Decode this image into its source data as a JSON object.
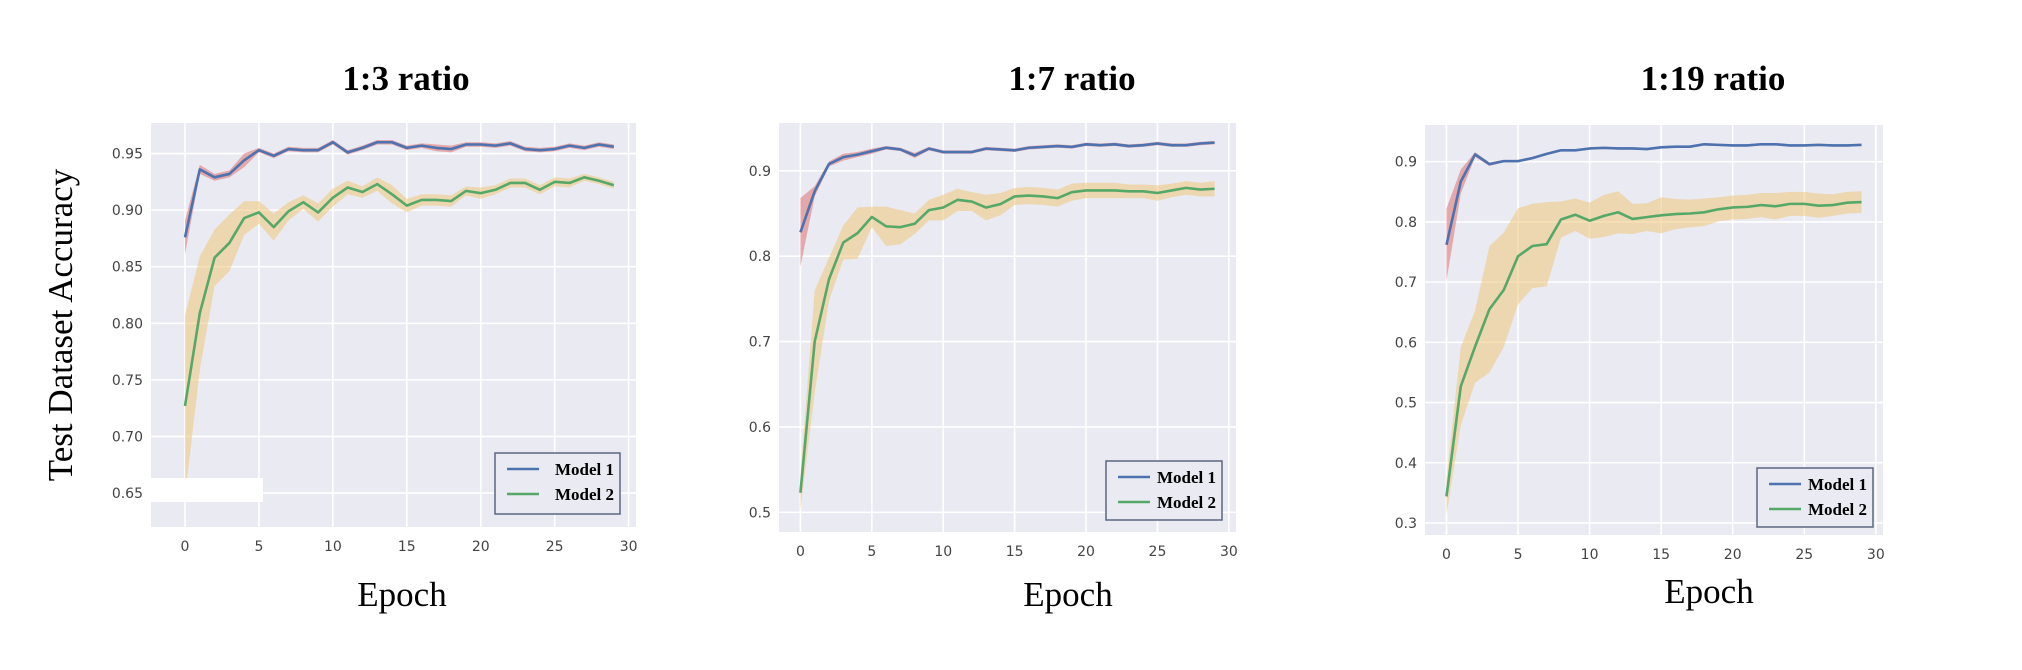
{
  "ylabel": "Test Dataset Accuracy",
  "colors": {
    "background": "#EAEAF2",
    "model1": "#4C72B0",
    "model2": "#55A868",
    "band1": "#E07A7A",
    "band2": "#EEC77A"
  },
  "chart_data": [
    {
      "type": "line",
      "title": "1:3 ratio",
      "xlabel": "Epoch",
      "ylabel": "Test Dataset Accuracy",
      "xlim": [
        -2.3,
        30.5
      ],
      "ylim": [
        0.62,
        0.977
      ],
      "xticks": [
        "0",
        "5",
        "10",
        "15",
        "20",
        "25",
        "30"
      ],
      "yticks": [
        "0.65",
        "0.70",
        "0.75",
        "0.80",
        "0.85",
        "0.90",
        "0.95"
      ],
      "grid": true,
      "legend": "lower-right",
      "series": [
        {
          "name": "Model 1",
          "values": [
            0.876,
            0.936,
            0.929,
            0.932,
            0.944,
            0.953,
            0.948,
            0.954,
            0.953,
            0.953,
            0.96,
            0.951,
            0.955,
            0.96,
            0.96,
            0.955,
            0.957,
            0.955,
            0.954,
            0.958,
            0.958,
            0.957,
            0.959,
            0.954,
            0.953,
            0.954,
            0.957,
            0.955,
            0.958,
            0.956
          ],
          "band": [
            0.015,
            0.004,
            0.003,
            0.003,
            0.006,
            0.002,
            0.002,
            0.002,
            0.002,
            0.002,
            0.002,
            0.002,
            0.002,
            0.002,
            0.002,
            0.002,
            0.002,
            0.003,
            0.003,
            0.002,
            0.002,
            0.002,
            0.002,
            0.002,
            0.002,
            0.002,
            0.002,
            0.002,
            0.002,
            0.002
          ]
        },
        {
          "name": "Model 2",
          "values": [
            0.727,
            0.809,
            0.858,
            0.871,
            0.893,
            0.898,
            0.885,
            0.899,
            0.907,
            0.898,
            0.911,
            0.92,
            0.916,
            0.923,
            0.914,
            0.904,
            0.909,
            0.909,
            0.908,
            0.917,
            0.915,
            0.918,
            0.924,
            0.924,
            0.918,
            0.925,
            0.924,
            0.929,
            0.926,
            0.922
          ],
          "band": [
            0.08,
            0.05,
            0.025,
            0.025,
            0.015,
            0.01,
            0.012,
            0.008,
            0.006,
            0.008,
            0.008,
            0.006,
            0.005,
            0.006,
            0.008,
            0.006,
            0.005,
            0.005,
            0.005,
            0.004,
            0.005,
            0.004,
            0.004,
            0.004,
            0.004,
            0.004,
            0.004,
            0.003,
            0.003,
            0.003
          ]
        }
      ]
    },
    {
      "type": "line",
      "title": "1:7 ratio",
      "xlabel": "Epoch",
      "ylabel": "",
      "xlim": [
        -1.5,
        30.5
      ],
      "ylim": [
        0.477,
        0.956
      ],
      "xticks": [
        "0",
        "5",
        "10",
        "15",
        "20",
        "25",
        "30"
      ],
      "yticks": [
        "0.5",
        "0.6",
        "0.7",
        "0.8",
        "0.9"
      ],
      "grid": true,
      "legend": "lower-right",
      "series": [
        {
          "name": "Model 1",
          "values": [
            0.828,
            0.876,
            0.908,
            0.916,
            0.919,
            0.923,
            0.927,
            0.925,
            0.918,
            0.926,
            0.922,
            0.922,
            0.922,
            0.926,
            0.925,
            0.924,
            0.927,
            0.928,
            0.929,
            0.928,
            0.931,
            0.93,
            0.931,
            0.929,
            0.93,
            0.932,
            0.93,
            0.93,
            0.932,
            0.933
          ],
          "band": [
            0.04,
            0.006,
            0.003,
            0.004,
            0.003,
            0.003,
            0.002,
            0.002,
            0.003,
            0.002,
            0.002,
            0.002,
            0.002,
            0.002,
            0.002,
            0.002,
            0.002,
            0.002,
            0.002,
            0.002,
            0.002,
            0.002,
            0.002,
            0.002,
            0.002,
            0.002,
            0.002,
            0.002,
            0.002,
            0.002
          ]
        },
        {
          "name": "Model 2",
          "values": [
            0.523,
            0.7,
            0.773,
            0.816,
            0.827,
            0.846,
            0.835,
            0.834,
            0.838,
            0.854,
            0.857,
            0.866,
            0.864,
            0.857,
            0.861,
            0.87,
            0.871,
            0.87,
            0.868,
            0.875,
            0.877,
            0.877,
            0.877,
            0.876,
            0.876,
            0.874,
            0.877,
            0.88,
            0.878,
            0.879
          ],
          "band": [
            0.02,
            0.06,
            0.025,
            0.02,
            0.03,
            0.012,
            0.023,
            0.02,
            0.012,
            0.012,
            0.015,
            0.013,
            0.011,
            0.015,
            0.013,
            0.01,
            0.01,
            0.01,
            0.01,
            0.01,
            0.009,
            0.009,
            0.009,
            0.008,
            0.008,
            0.009,
            0.008,
            0.008,
            0.008,
            0.009
          ]
        }
      ]
    },
    {
      "type": "line",
      "title": "1:19 ratio",
      "xlabel": "Epoch",
      "ylabel": "",
      "xlim": [
        -1.5,
        30.5
      ],
      "ylim": [
        0.28,
        0.961
      ],
      "xticks": [
        "0",
        "5",
        "10",
        "15",
        "20",
        "25",
        "30"
      ],
      "yticks": [
        "0.3",
        "0.4",
        "0.5",
        "0.6",
        "0.7",
        "0.8",
        "0.9"
      ],
      "grid": true,
      "legend": "lower-right",
      "series": [
        {
          "name": "Model 1",
          "values": [
            0.762,
            0.867,
            0.912,
            0.896,
            0.901,
            0.901,
            0.906,
            0.913,
            0.919,
            0.919,
            0.922,
            0.923,
            0.922,
            0.922,
            0.921,
            0.924,
            0.925,
            0.925,
            0.929,
            0.928,
            0.927,
            0.927,
            0.929,
            0.929,
            0.927,
            0.927,
            0.928,
            0.927,
            0.927,
            0.928
          ],
          "band": [
            0.06,
            0.02,
            0.004,
            0.003,
            0.002,
            0.002,
            0.002,
            0.002,
            0.002,
            0.002,
            0.002,
            0.002,
            0.002,
            0.002,
            0.002,
            0.002,
            0.002,
            0.002,
            0.002,
            0.002,
            0.002,
            0.002,
            0.002,
            0.002,
            0.002,
            0.002,
            0.002,
            0.002,
            0.002,
            0.002
          ]
        },
        {
          "name": "Model 2",
          "values": [
            0.344,
            0.527,
            0.593,
            0.655,
            0.687,
            0.743,
            0.76,
            0.763,
            0.804,
            0.812,
            0.802,
            0.81,
            0.816,
            0.805,
            0.808,
            0.811,
            0.813,
            0.814,
            0.816,
            0.821,
            0.824,
            0.825,
            0.828,
            0.826,
            0.83,
            0.83,
            0.827,
            0.828,
            0.832,
            0.833
          ],
          "band": [
            0.03,
            0.065,
            0.06,
            0.105,
            0.095,
            0.08,
            0.07,
            0.07,
            0.03,
            0.027,
            0.03,
            0.035,
            0.035,
            0.025,
            0.023,
            0.03,
            0.025,
            0.023,
            0.023,
            0.02,
            0.02,
            0.02,
            0.02,
            0.022,
            0.02,
            0.02,
            0.02,
            0.018,
            0.018,
            0.018
          ]
        }
      ]
    }
  ]
}
